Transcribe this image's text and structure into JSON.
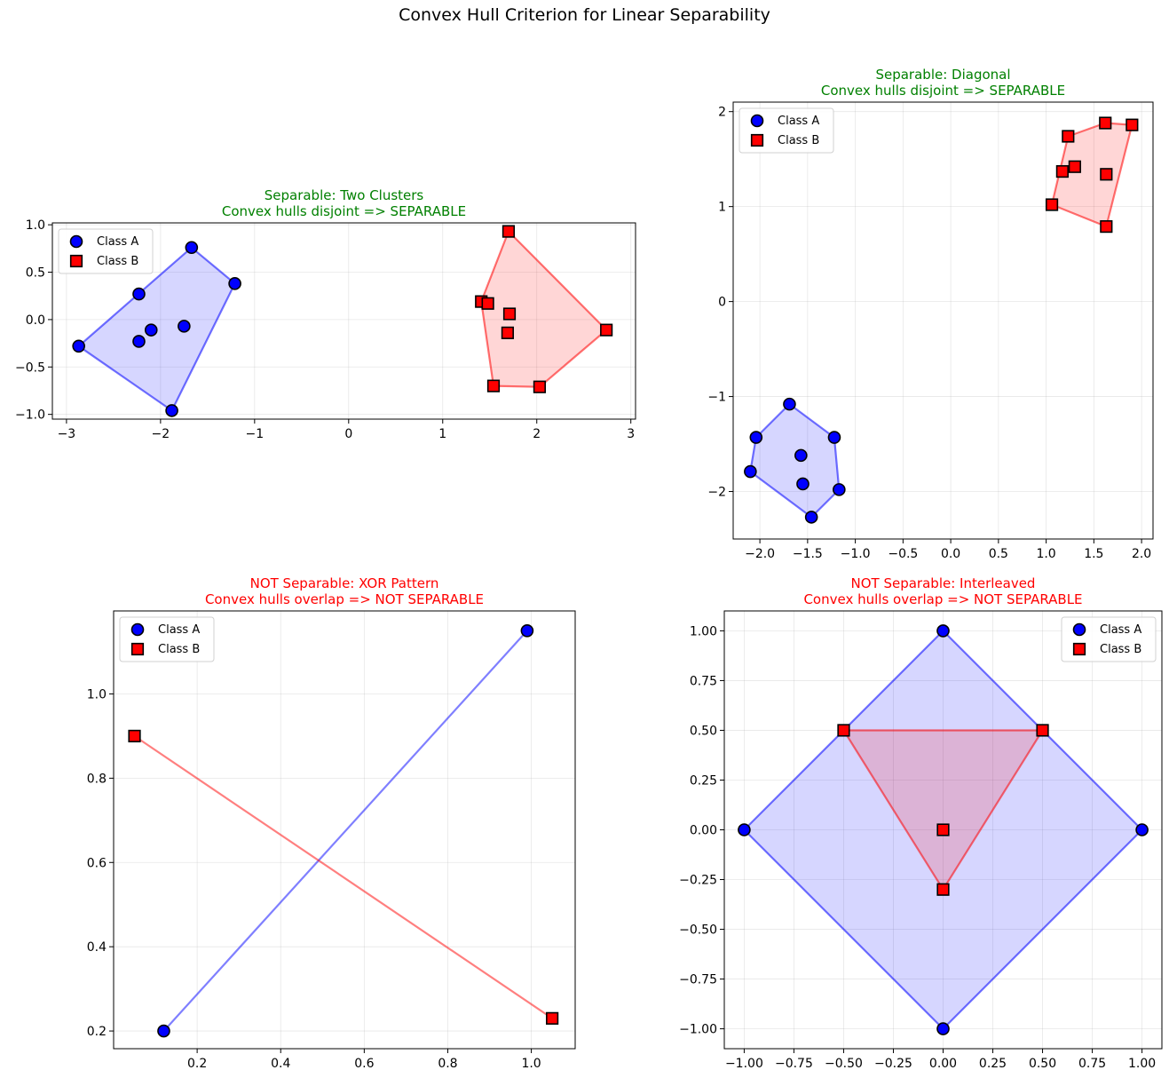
{
  "figure_title": "Convex Hull Criterion for Linear Separability",
  "colors": {
    "class_a": "#0000ff",
    "class_b": "#ff0000",
    "separable_title": "#008000",
    "not_separable_title": "#ff0000"
  },
  "legend_labels": [
    "Class A",
    "Class B"
  ],
  "chart_data": [
    {
      "type": "scatter",
      "title": "Separable: Two Clusters",
      "subtitle": "Convex hulls disjoint => SEPARABLE",
      "separable": true,
      "xlim": [
        -3.15,
        3.05
      ],
      "ylim": [
        -1.05,
        1.02
      ],
      "xticks": [
        -3,
        -2,
        -1,
        0,
        1,
        2,
        3
      ],
      "yticks": [
        -1.0,
        -0.5,
        0.0,
        0.5,
        1.0
      ],
      "legend": "top-left",
      "grid": true,
      "series": [
        {
          "name": "Class A",
          "points": [
            [
              -2.87,
              -0.28
            ],
            [
              -2.23,
              0.27
            ],
            [
              -2.23,
              -0.23
            ],
            [
              -2.1,
              -0.11
            ],
            [
              -1.75,
              -0.07
            ],
            [
              -1.67,
              0.76
            ],
            [
              -1.21,
              0.38
            ],
            [
              -1.88,
              -0.96
            ]
          ],
          "hull": [
            [
              -2.87,
              -0.28
            ],
            [
              -1.88,
              -0.96
            ],
            [
              -1.21,
              0.38
            ],
            [
              -1.67,
              0.76
            ]
          ]
        },
        {
          "name": "Class B",
          "points": [
            [
              1.41,
              0.19
            ],
            [
              1.48,
              0.17
            ],
            [
              1.7,
              0.93
            ],
            [
              1.71,
              0.06
            ],
            [
              1.69,
              -0.14
            ],
            [
              1.54,
              -0.7
            ],
            [
              2.03,
              -0.71
            ],
            [
              2.74,
              -0.11
            ]
          ],
          "hull": [
            [
              1.41,
              0.19
            ],
            [
              1.54,
              -0.7
            ],
            [
              2.03,
              -0.71
            ],
            [
              2.74,
              -0.11
            ],
            [
              1.7,
              0.93
            ]
          ]
        }
      ]
    },
    {
      "type": "scatter",
      "title": "Separable: Diagonal",
      "subtitle": "Convex hulls disjoint => SEPARABLE",
      "separable": true,
      "xlim": [
        -2.28,
        2.12
      ],
      "ylim": [
        -2.5,
        2.1
      ],
      "xticks": [
        -2.0,
        -1.5,
        -1.0,
        -0.5,
        0.0,
        0.5,
        1.0,
        1.5,
        2.0
      ],
      "yticks": [
        -2,
        -1,
        0,
        1,
        2
      ],
      "legend": "top-left",
      "grid": true,
      "series": [
        {
          "name": "Class A",
          "points": [
            [
              -2.1,
              -1.79
            ],
            [
              -2.04,
              -1.43
            ],
            [
              -1.69,
              -1.08
            ],
            [
              -1.57,
              -1.62
            ],
            [
              -1.55,
              -1.92
            ],
            [
              -1.46,
              -2.27
            ],
            [
              -1.22,
              -1.43
            ],
            [
              -1.17,
              -1.98
            ]
          ],
          "hull": [
            [
              -2.1,
              -1.79
            ],
            [
              -2.04,
              -1.43
            ],
            [
              -1.69,
              -1.08
            ],
            [
              -1.22,
              -1.43
            ],
            [
              -1.17,
              -1.98
            ],
            [
              -1.46,
              -2.27
            ]
          ]
        },
        {
          "name": "Class B",
          "points": [
            [
              1.06,
              1.02
            ],
            [
              1.17,
              1.37
            ],
            [
              1.23,
              1.74
            ],
            [
              1.3,
              1.42
            ],
            [
              1.62,
              1.88
            ],
            [
              1.63,
              1.34
            ],
            [
              1.63,
              0.79
            ],
            [
              1.9,
              1.86
            ]
          ],
          "hull": [
            [
              1.06,
              1.02
            ],
            [
              1.23,
              1.74
            ],
            [
              1.62,
              1.88
            ],
            [
              1.9,
              1.86
            ],
            [
              1.63,
              0.79
            ]
          ]
        }
      ]
    },
    {
      "type": "scatter",
      "title": "NOT Separable: XOR Pattern",
      "subtitle": "Convex hulls overlap => NOT SEPARABLE",
      "separable": false,
      "xlim": [
        0.0,
        1.105
      ],
      "ylim": [
        0.158,
        1.197
      ],
      "xticks": [
        0.2,
        0.4,
        0.6,
        0.8,
        1.0
      ],
      "yticks": [
        0.2,
        0.4,
        0.6,
        0.8,
        1.0
      ],
      "legend": "top-left",
      "grid": true,
      "series": [
        {
          "name": "Class A",
          "points": [
            [
              0.12,
              0.2
            ],
            [
              0.99,
              1.15
            ]
          ],
          "hull": [
            [
              0.12,
              0.2
            ],
            [
              0.99,
              1.15
            ]
          ]
        },
        {
          "name": "Class B",
          "points": [
            [
              0.05,
              0.9
            ],
            [
              1.05,
              0.23
            ]
          ],
          "hull": [
            [
              0.05,
              0.9
            ],
            [
              1.05,
              0.23
            ]
          ]
        }
      ]
    },
    {
      "type": "scatter",
      "title": "NOT Separable: Interleaved",
      "subtitle": "Convex hulls overlap => NOT SEPARABLE",
      "separable": false,
      "xlim": [
        -1.1,
        1.1
      ],
      "ylim": [
        -1.1,
        1.1
      ],
      "xticks": [
        -1.0,
        -0.75,
        -0.5,
        -0.25,
        0.0,
        0.25,
        0.5,
        0.75,
        1.0
      ],
      "yticks": [
        -1.0,
        -0.75,
        -0.5,
        -0.25,
        0.0,
        0.25,
        0.5,
        0.75,
        1.0
      ],
      "legend": "top-right",
      "grid": true,
      "series": [
        {
          "name": "Class A",
          "points": [
            [
              -1.0,
              0.0
            ],
            [
              0.0,
              1.0
            ],
            [
              1.0,
              0.0
            ],
            [
              0.0,
              -1.0
            ]
          ],
          "hull": [
            [
              -1.0,
              0.0
            ],
            [
              0.0,
              1.0
            ],
            [
              1.0,
              0.0
            ],
            [
              0.0,
              -1.0
            ]
          ]
        },
        {
          "name": "Class B",
          "points": [
            [
              -0.5,
              0.5
            ],
            [
              0.5,
              0.5
            ],
            [
              0.0,
              0.0
            ],
            [
              0.0,
              -0.3
            ]
          ],
          "hull": [
            [
              -0.5,
              0.5
            ],
            [
              0.5,
              0.5
            ],
            [
              0.0,
              -0.3
            ]
          ]
        }
      ]
    }
  ]
}
